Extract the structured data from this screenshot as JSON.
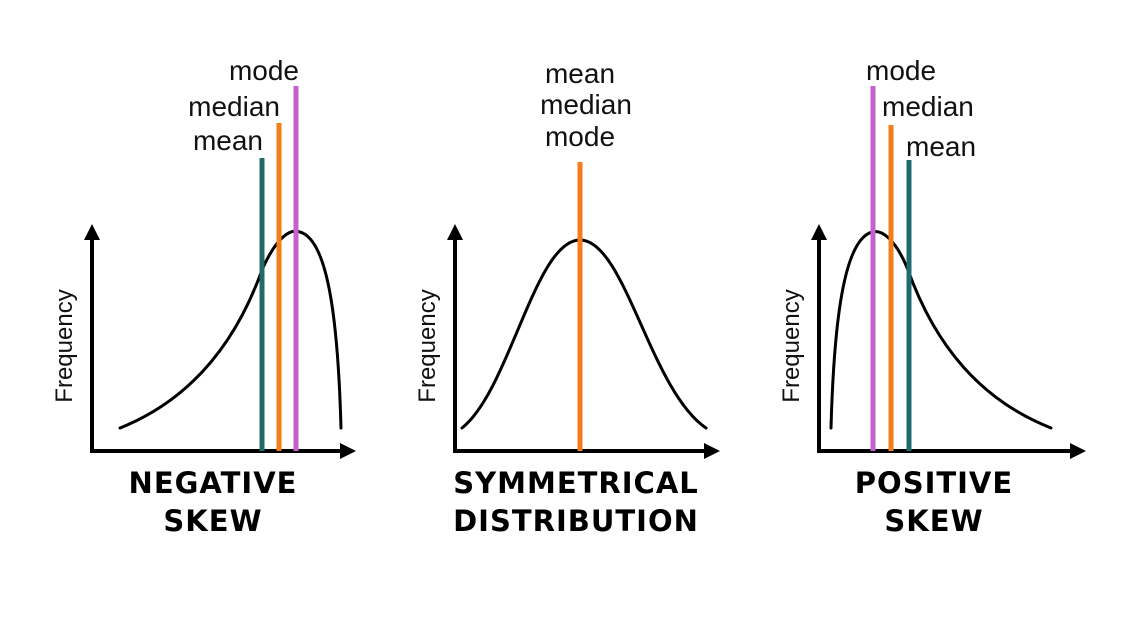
{
  "colors": {
    "mean": "#1f6b6b",
    "median": "#f57c18",
    "mode": "#c65fcf",
    "axis": "#000000"
  },
  "panels": [
    {
      "id": "negative",
      "y_axis_label": "Frequency",
      "caption_lines": [
        "NEGATIVE",
        "SKEW"
      ],
      "markers": [
        {
          "label": "mean",
          "measure": "mean"
        },
        {
          "label": "median",
          "measure": "median"
        },
        {
          "label": "mode",
          "measure": "mode"
        }
      ]
    },
    {
      "id": "symmetric",
      "y_axis_label": "Frequency",
      "caption_lines": [
        "SYMMETRICAL",
        "DISTRIBUTION"
      ],
      "markers": [
        {
          "label": "mean",
          "measure": "median"
        }
      ],
      "stacked_label_lines": [
        "mean",
        "median",
        "mode"
      ]
    },
    {
      "id": "positive",
      "y_axis_label": "Frequency",
      "caption_lines": [
        "POSITIVE",
        "SKEW"
      ],
      "markers": [
        {
          "label": "mode",
          "measure": "mode"
        },
        {
          "label": "median",
          "measure": "median"
        },
        {
          "label": "mean",
          "measure": "mean"
        }
      ]
    }
  ]
}
